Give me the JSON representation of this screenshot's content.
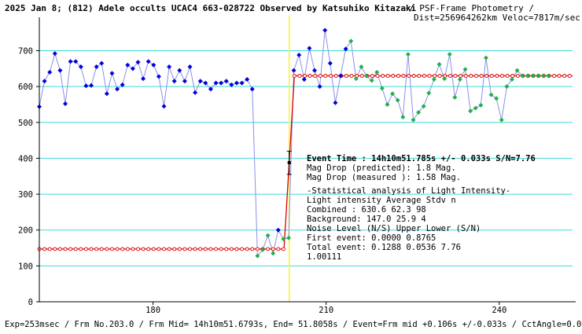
{
  "header": {
    "observation_title": "2025 Jan 8; (812) Adele occults UCAC4 663-028722 Observed by Katsuhiko Kitazaki",
    "separator": " / ",
    "method": "PSF-Frame Photometry /",
    "dist_veloc": "Dist=256964262km Veloc=7817m/sec"
  },
  "footer": {
    "exposure_line": "Exp=253msec / Frm No.203.0 / Frm Mid= 14h10m51.6793s, End= 51.8058s / Event=Frm mid +0.106s +/-0.033s / CctAngle=0.0deg"
  },
  "annotation": {
    "event_time": "Event Time : 14h10m51.785s  +/- 0.033s  S/N=7.76",
    "mag_drop_predicted": "Mag Drop (predicted):  1.8   Mag.",
    "mag_drop_measured": "Mag Drop (measured ):  1.58  Mag.",
    "stats_title": "-Statistical analysis of Light Intensity-",
    "stats_header": "Light intensity      Average   Stdv      n",
    "stats_combined": "  Combined  :          630.6     62.3     98",
    "stats_background": "  Background:          147.0     25.9      4",
    "noise_header": "Noise Level (N/S)   Upper     Lower    (S/N)",
    "noise_first": "  First event:      0.0000    0.8765",
    "noise_total": "  Total event:      0.1288    0.0536    7.76",
    "extra_value": "1.00111"
  },
  "colors": {
    "background": "#ffffff",
    "gridline": "#3fd9d9",
    "connect_line": "#8a90e8",
    "pre_event_point": "#0000dd",
    "post_event_point": "#22b04a",
    "fit_line": "#dd0000",
    "event_marker": "#f7f46a",
    "error_bar": "#000000",
    "text": "#000000"
  },
  "chart_data": {
    "type": "scatter",
    "title": "",
    "xlabel": "",
    "ylabel": "",
    "xlim": [
      160.3,
      252.7
    ],
    "ylim": [
      0,
      780
    ],
    "x_ticks": [
      180,
      210,
      240
    ],
    "y_ticks": [
      0,
      100,
      200,
      300,
      400,
      500,
      600,
      700
    ],
    "grid": true,
    "event_x": 203.6,
    "event_error_bar": {
      "x": 203.6,
      "y_center": 388,
      "y_low": 355,
      "y_high": 420
    },
    "series": [
      {
        "role": "light_curve_pre",
        "x": [
          160.3,
          161.2,
          162.1,
          163.0,
          163.9,
          164.8,
          165.7,
          166.6,
          167.5,
          168.4,
          169.3,
          170.2,
          171.1,
          172.0,
          172.9,
          173.8,
          174.7,
          175.6,
          176.5,
          177.4,
          178.3,
          179.2,
          180.1,
          181.0,
          181.9,
          182.8,
          183.7,
          184.6,
          185.5,
          186.4,
          187.3,
          188.2,
          189.1,
          190.0,
          190.9,
          191.8,
          192.7,
          193.6,
          194.5,
          195.4,
          196.3,
          197.2
        ],
        "y": [
          544,
          615,
          640,
          692,
          645,
          552,
          670,
          670,
          655,
          602,
          603,
          655,
          665,
          580,
          637,
          593,
          605,
          660,
          650,
          668,
          622,
          670,
          660,
          628,
          545,
          655,
          615,
          645,
          615,
          655,
          583,
          615,
          610,
          593,
          610,
          610,
          615,
          605,
          610,
          610,
          620,
          593
        ]
      },
      {
        "role": "light_curve_dip",
        "x": [
          197.2,
          198.1,
          199.0,
          199.9,
          200.8,
          201.7,
          202.6,
          203.5
        ],
        "y": [
          593,
          128,
          145,
          185,
          135,
          200,
          175,
          178
        ]
      },
      {
        "role": "light_curve_post",
        "x": [
          203.5,
          204.4,
          205.3,
          206.2,
          207.1,
          208.0,
          208.9,
          209.8,
          210.7,
          211.6,
          212.5,
          213.4,
          214.3,
          215.2,
          216.1,
          217.0,
          217.9,
          218.8,
          219.7,
          220.6,
          221.5,
          222.4,
          223.3,
          224.2,
          225.1,
          226.0,
          226.9,
          227.8,
          228.7,
          229.6,
          230.5,
          231.4,
          232.3,
          233.2,
          234.1,
          235.0,
          235.9,
          236.8,
          237.7,
          238.6,
          239.5,
          240.4,
          241.3,
          242.2,
          243.1,
          244.0,
          244.9,
          245.8,
          246.7,
          247.6,
          248.5
        ],
        "y": [
          178,
          645,
          688,
          620,
          707,
          645,
          600,
          757,
          665,
          555,
          630,
          705,
          727,
          622,
          655,
          630,
          617,
          640,
          595,
          550,
          580,
          562,
          515,
          690,
          507,
          528,
          545,
          582,
          620,
          662,
          622,
          690,
          570,
          620,
          648,
          532,
          540,
          548,
          680,
          577,
          567,
          507,
          600,
          620,
          645,
          630,
          630,
          630,
          630,
          630,
          630
        ]
      },
      {
        "role": "fit_model",
        "x": [
          160.3,
          202.7,
          203.6,
          204.5,
          252.7
        ],
        "y": [
          147,
          147,
          388,
          630,
          630
        ]
      }
    ]
  }
}
